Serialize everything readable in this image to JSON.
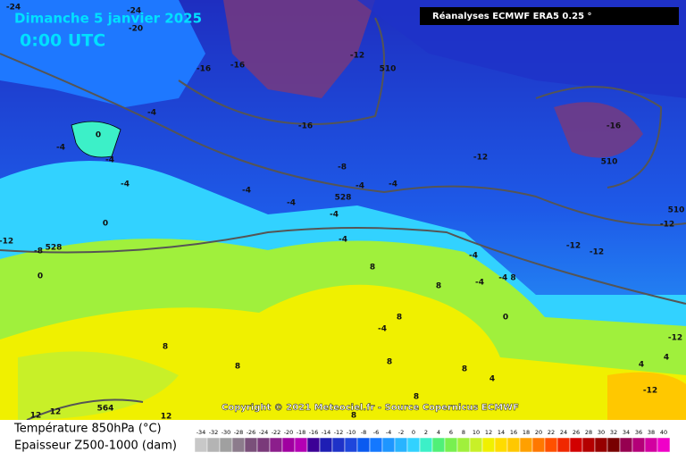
{
  "header": {
    "date": "Dimanche 5 janvier 2025",
    "time": "0:00 UTC",
    "source_box": "Réanalyses ECMWF ERA5 0.25 °",
    "copyright": "Copyright © 2021 Meteociel.fr - Source Copernicus ECMWF"
  },
  "map_labels": [
    "-24",
    "-24",
    "-20",
    "-16",
    "-16",
    "-12",
    "510",
    "-4",
    "0",
    "-4",
    "-4",
    "-16",
    "-16",
    "-12",
    "-8",
    "510",
    "-4",
    "-4",
    "528",
    "-4",
    "-4",
    "-4",
    "-4",
    "0",
    "-12",
    "-8",
    "528",
    "0",
    "-4",
    "510",
    "-12",
    "-12",
    "-12",
    "-4",
    "8",
    "8",
    "-4",
    "-4 8",
    "0",
    "8",
    "-4",
    "8",
    "8",
    "8",
    "8",
    "4",
    "4",
    "-12",
    "4",
    "-12",
    "564",
    "12",
    "12",
    "8",
    "8",
    "12"
  ],
  "legend": {
    "temperature_title": "Température 850hPa (°C)",
    "thickness_title": "Epaisseur Z500-1000 (dam)",
    "scale": [
      -34,
      -32,
      -30,
      -28,
      -26,
      -24,
      -22,
      -20,
      -18,
      -16,
      -14,
      -12,
      -10,
      -8,
      -6,
      -4,
      -2,
      0,
      2,
      4,
      6,
      8,
      10,
      12,
      14,
      16,
      18,
      20,
      22,
      24,
      26,
      28,
      30,
      32,
      34,
      36,
      38,
      40
    ],
    "colors": [
      "#c8c8c8",
      "#b4b4b4",
      "#a0a0a0",
      "#8c7c8c",
      "#7a507a",
      "#7a3a7a",
      "#8c1e8c",
      "#a000a0",
      "#b400b4",
      "#3c0096",
      "#1e1eb4",
      "#1e32c8",
      "#1e46dc",
      "#0a5af0",
      "#1478ff",
      "#1e96ff",
      "#28b4ff",
      "#32d2ff",
      "#3cf0c8",
      "#50f078",
      "#78f050",
      "#a0f03c",
      "#c8f028",
      "#f0f000",
      "#ffdc00",
      "#ffc800",
      "#ffa000",
      "#ff7800",
      "#ff5000",
      "#f02800",
      "#d20000",
      "#b40000",
      "#960000",
      "#780000",
      "#960050",
      "#b40078",
      "#d200a0",
      "#f000c8"
    ]
  }
}
